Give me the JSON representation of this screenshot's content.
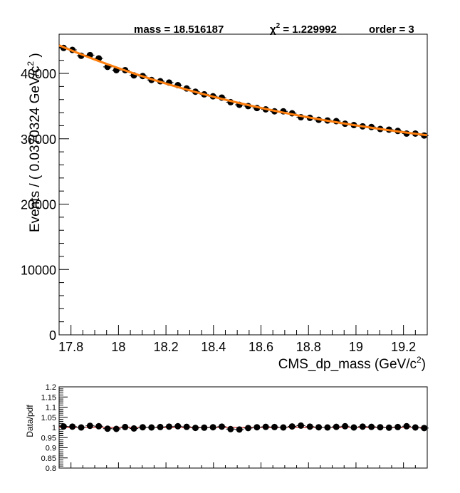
{
  "header": {
    "mass_label": "mass = 18.516187",
    "chi2_symbol": "χ",
    "chi2_exp": "2",
    "chi2_value": " = 1.229992",
    "order_label": "order = 3"
  },
  "chart_data": [
    {
      "type": "scatter",
      "title": "",
      "xlabel": "CMS_dp_mass (GeV/c",
      "xlabel_exp": "2",
      "xlabel_close": ")",
      "ylabel": "Events / ( 0.0370324 GeV/c",
      "ylabel_exp": "2",
      "ylabel_close": " )",
      "xlim": [
        17.75,
        19.3
      ],
      "ylim": [
        0,
        46000
      ],
      "x_ticks": [
        17.8,
        18,
        18.2,
        18.4,
        18.6,
        18.8,
        19,
        19.2
      ],
      "x_tick_labels": [
        "17.8",
        "18",
        "18.2",
        "18.4",
        "18.6",
        "18.8",
        "19",
        "19.2"
      ],
      "y_ticks": [
        0,
        10000,
        20000,
        30000,
        40000
      ],
      "y_tick_labels": [
        "0",
        "10000",
        "20000",
        "30000",
        "40000"
      ],
      "x": [
        17.769,
        17.806,
        17.843,
        17.88,
        17.917,
        17.954,
        17.991,
        18.028,
        18.065,
        18.102,
        18.139,
        18.176,
        18.213,
        18.25,
        18.287,
        18.324,
        18.361,
        18.398,
        18.435,
        18.472,
        18.509,
        18.546,
        18.583,
        18.62,
        18.657,
        18.694,
        18.731,
        18.768,
        18.806,
        18.843,
        18.88,
        18.917,
        18.954,
        18.991,
        19.028,
        19.065,
        19.102,
        19.139,
        19.176,
        19.213,
        19.25,
        19.287
      ],
      "y": [
        43900,
        43600,
        42700,
        42800,
        42300,
        41000,
        40500,
        40500,
        39700,
        39600,
        39000,
        38800,
        38600,
        38200,
        37700,
        37200,
        36800,
        36500,
        36300,
        35600,
        35200,
        35000,
        34700,
        34500,
        34200,
        34200,
        33900,
        33300,
        33200,
        32900,
        32800,
        32700,
        32300,
        32100,
        31900,
        31800,
        31500,
        31400,
        31200,
        30800,
        30800,
        30500
      ],
      "yerr": [
        210,
        209,
        207,
        207,
        206,
        202,
        201,
        201,
        199,
        199,
        197,
        197,
        196,
        195,
        194,
        193,
        192,
        191,
        191,
        189,
        188,
        187,
        186,
        186,
        185,
        185,
        184,
        182,
        182,
        181,
        181,
        181,
        180,
        179,
        179,
        178,
        177,
        177,
        177,
        175,
        175,
        175
      ],
      "fit_color": "#ff7f0e",
      "marker_color": "#000000",
      "legend": "none",
      "grid": false
    },
    {
      "type": "scatter",
      "title": "",
      "xlabel": "",
      "ylabel": "Data/pdf",
      "xlim": [
        17.75,
        19.3
      ],
      "ylim": [
        0.8,
        1.2
      ],
      "y_ticks": [
        0.8,
        0.85,
        0.9,
        0.95,
        1,
        1.05,
        1.1,
        1.15,
        1.2
      ],
      "y_tick_labels": [
        "0.8",
        "0.85",
        "0.9",
        "0.95",
        "1",
        "1.05",
        "1.1",
        "1.15",
        "1.2"
      ],
      "reference_line": 1,
      "reference_color": "#cc0000",
      "y": [
        1.005,
        1.004,
        1.0,
        1.008,
        1.006,
        0.994,
        0.993,
        1.002,
        0.995,
        1.001,
        1.0,
        1.002,
        1.004,
        1.006,
        1.003,
        0.998,
        0.999,
        1.001,
        1.004,
        0.992,
        0.99,
        0.997,
        1.001,
        1.003,
        1.002,
        1.0,
        1.005,
        1.009,
        1.004,
        1.001,
        1.0,
        1.003,
        1.006,
        1.0,
        1.004,
        1.003,
        1.001,
        0.999,
        1.002,
        1.006,
        1.0,
        0.997
      ],
      "yerr": [
        0.005,
        0.005,
        0.005,
        0.005,
        0.005,
        0.005,
        0.005,
        0.005,
        0.005,
        0.005,
        0.005,
        0.005,
        0.005,
        0.005,
        0.005,
        0.005,
        0.005,
        0.005,
        0.005,
        0.005,
        0.005,
        0.005,
        0.005,
        0.005,
        0.005,
        0.005,
        0.005,
        0.005,
        0.005,
        0.005,
        0.005,
        0.005,
        0.005,
        0.005,
        0.005,
        0.005,
        0.005,
        0.005,
        0.005,
        0.005,
        0.005,
        0.005
      ],
      "marker_color": "#000000",
      "grid": false
    }
  ]
}
